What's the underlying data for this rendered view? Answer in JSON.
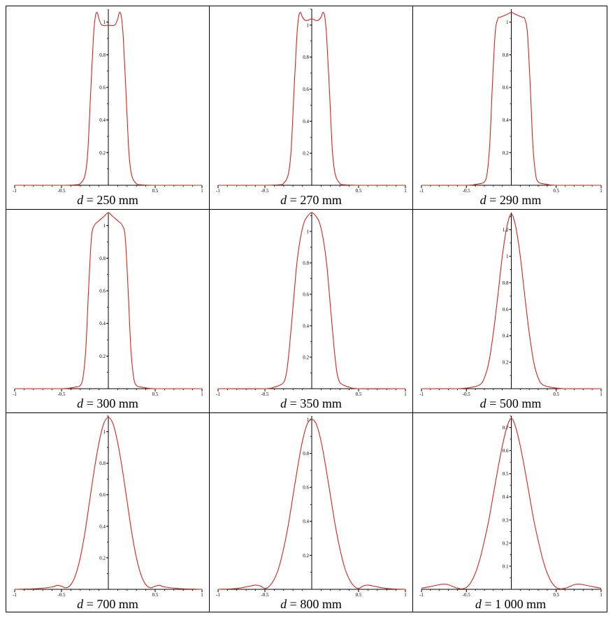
{
  "colors": {
    "curve": "#d9241b",
    "axis": "#000000",
    "grid_line": "#000000"
  },
  "chart_data": [
    {
      "type": "line",
      "caption_var": "d",
      "caption_rest": " = 250 mm",
      "xlim": [
        -1,
        1
      ],
      "ylim": [
        0,
        1.08
      ],
      "xticks": [
        "-1",
        "-0.5",
        "0.5",
        "1"
      ],
      "xtick_values": [
        -1,
        -0.5,
        0.5,
        1
      ],
      "yticks": [
        "0.2",
        "0.4",
        "0.6",
        "0.8",
        "1"
      ],
      "ytick_values": [
        0.2,
        0.4,
        0.6,
        0.8,
        1.0
      ],
      "series": [
        {
          "x": [
            -1,
            -0.5,
            -0.35,
            -0.3,
            -0.25,
            -0.22,
            -0.19,
            -0.16,
            -0.14,
            -0.12,
            -0.1,
            -0.08,
            -0.06,
            -0.03,
            0,
            0.03,
            0.06,
            0.08,
            0.1,
            0.12,
            0.14,
            0.16,
            0.19,
            0.22,
            0.25,
            0.3,
            0.35,
            0.5,
            1
          ],
          "y": [
            0,
            0,
            0.003,
            0.01,
            0.06,
            0.2,
            0.55,
            0.9,
            1.03,
            1.06,
            1.02,
            0.99,
            0.98,
            0.98,
            0.98,
            0.98,
            0.98,
            0.99,
            1.02,
            1.06,
            1.03,
            0.9,
            0.55,
            0.2,
            0.06,
            0.01,
            0.003,
            0,
            0
          ]
        }
      ]
    },
    {
      "type": "line",
      "caption_var": "d",
      "caption_rest": " = 270 mm",
      "xlim": [
        -1,
        1
      ],
      "ylim": [
        0,
        1.1
      ],
      "xticks": [
        "-1",
        "-0.5",
        "0.5",
        "1"
      ],
      "xtick_values": [
        -1,
        -0.5,
        0.5,
        1
      ],
      "yticks": [
        "0.2",
        "0.4",
        "0.6",
        "0.8",
        "1"
      ],
      "ytick_values": [
        0.2,
        0.4,
        0.6,
        0.8,
        1.0
      ],
      "series": [
        {
          "x": [
            -1,
            -0.5,
            -0.35,
            -0.3,
            -0.25,
            -0.22,
            -0.19,
            -0.16,
            -0.14,
            -0.12,
            -0.1,
            -0.07,
            -0.04,
            0,
            0.04,
            0.07,
            0.1,
            0.12,
            0.14,
            0.16,
            0.19,
            0.22,
            0.25,
            0.3,
            0.35,
            0.5,
            1
          ],
          "y": [
            0,
            0,
            0.003,
            0.012,
            0.07,
            0.22,
            0.58,
            0.92,
            1.05,
            1.08,
            1.05,
            1.03,
            1.03,
            1.04,
            1.03,
            1.03,
            1.05,
            1.08,
            1.05,
            0.92,
            0.58,
            0.22,
            0.07,
            0.012,
            0.003,
            0,
            0
          ]
        }
      ]
    },
    {
      "type": "line",
      "caption_var": "d",
      "caption_rest": " = 290 mm",
      "xlim": [
        -1,
        1
      ],
      "ylim": [
        0,
        1.08
      ],
      "xticks": [
        "-1",
        "-0.5",
        "0.5",
        "1"
      ],
      "xtick_values": [
        -1,
        -0.5,
        0.5,
        1
      ],
      "yticks": [
        "0.2",
        "0.4",
        "0.6",
        "0.8",
        "1"
      ],
      "ytick_values": [
        0.2,
        0.4,
        0.6,
        0.8,
        1.0
      ],
      "series": [
        {
          "x": [
            -1,
            -0.5,
            -0.4,
            -0.35,
            -0.3,
            -0.27,
            -0.24,
            -0.21,
            -0.18,
            -0.15,
            -0.12,
            -0.08,
            -0.04,
            0,
            0.04,
            0.08,
            0.12,
            0.15,
            0.18,
            0.21,
            0.24,
            0.27,
            0.3,
            0.35,
            0.4,
            0.5,
            1
          ],
          "y": [
            0,
            0,
            0.005,
            0.01,
            0.02,
            0.07,
            0.25,
            0.62,
            0.93,
            1.02,
            1.03,
            1.04,
            1.05,
            1.06,
            1.05,
            1.04,
            1.03,
            1.02,
            0.93,
            0.62,
            0.25,
            0.07,
            0.02,
            0.01,
            0.005,
            0,
            0
          ]
        }
      ]
    },
    {
      "type": "line",
      "caption_var": "d",
      "caption_rest": " = 300 mm",
      "xlim": [
        -1,
        1
      ],
      "ylim": [
        0,
        1.08
      ],
      "xticks": [
        "-1",
        "-0.5",
        "0.5",
        "1"
      ],
      "xtick_values": [
        -1,
        -0.5,
        0.5,
        1
      ],
      "yticks": [
        "0.2",
        "0.4",
        "0.6",
        "0.8",
        "1"
      ],
      "ytick_values": [
        0.2,
        0.4,
        0.6,
        0.8,
        1.0
      ],
      "series": [
        {
          "x": [
            -1,
            -0.5,
            -0.4,
            -0.35,
            -0.3,
            -0.27,
            -0.24,
            -0.21,
            -0.18,
            -0.15,
            -0.12,
            -0.08,
            -0.04,
            0,
            0.04,
            0.08,
            0.12,
            0.15,
            0.18,
            0.21,
            0.24,
            0.27,
            0.3,
            0.35,
            0.4,
            0.5,
            1
          ],
          "y": [
            0,
            0,
            0.005,
            0.01,
            0.02,
            0.07,
            0.25,
            0.62,
            0.93,
            1.0,
            1.02,
            1.04,
            1.06,
            1.08,
            1.06,
            1.04,
            1.02,
            1.0,
            0.93,
            0.62,
            0.25,
            0.07,
            0.02,
            0.01,
            0.005,
            0,
            0
          ]
        }
      ]
    },
    {
      "type": "line",
      "caption_var": "d",
      "caption_rest": " = 350 mm",
      "xlim": [
        -1,
        1
      ],
      "ylim": [
        0,
        1.12
      ],
      "xticks": [
        "-1",
        "-0.5",
        "0.5",
        "1"
      ],
      "xtick_values": [
        -1,
        -0.5,
        0.5,
        1
      ],
      "yticks": [
        "0.2",
        "0.4",
        "0.6",
        "0.8",
        "1"
      ],
      "ytick_values": [
        0.2,
        0.4,
        0.6,
        0.8,
        1.0
      ],
      "series": [
        {
          "x": [
            -1,
            -0.5,
            -0.4,
            -0.35,
            -0.3,
            -0.27,
            -0.24,
            -0.2,
            -0.16,
            -0.12,
            -0.08,
            -0.04,
            0,
            0.04,
            0.08,
            0.12,
            0.16,
            0.2,
            0.24,
            0.27,
            0.3,
            0.35,
            0.4,
            0.5,
            1
          ],
          "y": [
            0,
            0,
            0.01,
            0.02,
            0.04,
            0.1,
            0.25,
            0.52,
            0.79,
            0.96,
            1.06,
            1.1,
            1.12,
            1.1,
            1.06,
            0.96,
            0.79,
            0.52,
            0.25,
            0.1,
            0.04,
            0.02,
            0.01,
            0,
            0
          ]
        }
      ]
    },
    {
      "type": "line",
      "caption_var": "d",
      "caption_rest": " = 500 mm",
      "xlim": [
        -1,
        1
      ],
      "ylim": [
        0,
        1.33
      ],
      "xticks": [
        "-1",
        "-0.5",
        "0.5",
        "1"
      ],
      "xtick_values": [
        -1,
        -0.5,
        0.5,
        1
      ],
      "yticks": [
        "0.2",
        "0.4",
        "0.6",
        "0.8",
        "1",
        "1.2"
      ],
      "ytick_values": [
        0.2,
        0.4,
        0.6,
        0.8,
        1.0,
        1.2
      ],
      "series": [
        {
          "x": [
            -1,
            -0.6,
            -0.45,
            -0.35,
            -0.3,
            -0.25,
            -0.2,
            -0.15,
            -0.1,
            -0.05,
            0,
            0.05,
            0.1,
            0.15,
            0.2,
            0.25,
            0.3,
            0.35,
            0.45,
            0.6,
            1
          ],
          "y": [
            0,
            0,
            0.01,
            0.03,
            0.08,
            0.2,
            0.42,
            0.7,
            1.0,
            1.22,
            1.32,
            1.22,
            1.0,
            0.7,
            0.42,
            0.2,
            0.08,
            0.03,
            0.01,
            0,
            0
          ]
        }
      ]
    },
    {
      "type": "line",
      "caption_var": "d",
      "caption_rest": " = 700 mm",
      "xlim": [
        -1,
        1
      ],
      "ylim": [
        0,
        1.1
      ],
      "xticks": [
        "-1",
        "-0.5",
        "0.5",
        "1"
      ],
      "xtick_values": [
        -1,
        -0.5,
        0.5,
        1
      ],
      "yticks": [
        "0.2",
        "0.4",
        "0.6",
        "0.8",
        "1"
      ],
      "ytick_values": [
        0.2,
        0.4,
        0.6,
        0.8,
        1.0
      ],
      "series": [
        {
          "x": [
            -1,
            -0.75,
            -0.6,
            -0.55,
            -0.5,
            -0.45,
            -0.4,
            -0.35,
            -0.3,
            -0.25,
            -0.2,
            -0.15,
            -0.1,
            -0.05,
            0,
            0.05,
            0.1,
            0.15,
            0.2,
            0.25,
            0.3,
            0.35,
            0.4,
            0.45,
            0.5,
            0.55,
            0.6,
            0.75,
            1
          ],
          "y": [
            0,
            0.005,
            0.015,
            0.025,
            0.02,
            0.01,
            0.03,
            0.09,
            0.2,
            0.36,
            0.56,
            0.76,
            0.93,
            1.05,
            1.09,
            1.05,
            0.93,
            0.76,
            0.56,
            0.36,
            0.2,
            0.09,
            0.03,
            0.01,
            0.02,
            0.025,
            0.015,
            0.005,
            0
          ]
        }
      ]
    },
    {
      "type": "line",
      "caption_var": "d",
      "caption_rest": " = 800 mm",
      "xlim": [
        -1,
        1
      ],
      "ylim": [
        0,
        1.02
      ],
      "xticks": [
        "-1",
        "-0.5",
        "0.5",
        "1"
      ],
      "xtick_values": [
        -1,
        -0.5,
        0.5,
        1
      ],
      "yticks": [
        "0.2",
        "0.4",
        "0.6",
        "0.8",
        "1"
      ],
      "ytick_values": [
        0.2,
        0.4,
        0.6,
        0.8,
        1.0
      ],
      "series": [
        {
          "x": [
            -1,
            -0.8,
            -0.65,
            -0.6,
            -0.55,
            -0.5,
            -0.45,
            -0.4,
            -0.35,
            -0.3,
            -0.25,
            -0.2,
            -0.15,
            -0.1,
            -0.05,
            0,
            0.05,
            0.1,
            0.15,
            0.2,
            0.25,
            0.3,
            0.35,
            0.4,
            0.45,
            0.5,
            0.55,
            0.6,
            0.65,
            0.8,
            1
          ],
          "y": [
            0,
            0.005,
            0.02,
            0.025,
            0.02,
            0.005,
            0.02,
            0.06,
            0.13,
            0.24,
            0.38,
            0.55,
            0.72,
            0.87,
            0.97,
            1.0,
            0.97,
            0.87,
            0.72,
            0.55,
            0.38,
            0.24,
            0.13,
            0.06,
            0.02,
            0.005,
            0.02,
            0.025,
            0.02,
            0.005,
            0
          ]
        }
      ]
    },
    {
      "type": "line",
      "caption_var": "d",
      "caption_rest": " = 1 000 mm",
      "xlim": [
        -1,
        1
      ],
      "ylim": [
        0,
        0.75
      ],
      "xticks": [
        "-1",
        "-0.5",
        "0.5",
        "1"
      ],
      "xtick_values": [
        -1,
        -0.5,
        0.5,
        1
      ],
      "yticks": [
        "0.1",
        "0.2",
        "0.3",
        "0.4",
        "0.5",
        "0.6",
        "0.7"
      ],
      "ytick_values": [
        0.1,
        0.2,
        0.3,
        0.4,
        0.5,
        0.6,
        0.7
      ],
      "series": [
        {
          "x": [
            -1,
            -0.9,
            -0.8,
            -0.75,
            -0.7,
            -0.65,
            -0.6,
            -0.55,
            -0.5,
            -0.45,
            -0.4,
            -0.35,
            -0.3,
            -0.25,
            -0.2,
            -0.15,
            -0.1,
            -0.05,
            0,
            0.05,
            0.1,
            0.15,
            0.2,
            0.25,
            0.3,
            0.35,
            0.4,
            0.45,
            0.5,
            0.55,
            0.6,
            0.65,
            0.7,
            0.75,
            0.8,
            0.9,
            1
          ],
          "y": [
            0.005,
            0.012,
            0.02,
            0.022,
            0.02,
            0.012,
            0.005,
            0.002,
            0.008,
            0.03,
            0.07,
            0.13,
            0.21,
            0.3,
            0.41,
            0.52,
            0.62,
            0.7,
            0.74,
            0.7,
            0.62,
            0.52,
            0.41,
            0.3,
            0.21,
            0.13,
            0.07,
            0.03,
            0.008,
            0.002,
            0.005,
            0.012,
            0.02,
            0.022,
            0.02,
            0.012,
            0.005
          ]
        }
      ]
    }
  ]
}
